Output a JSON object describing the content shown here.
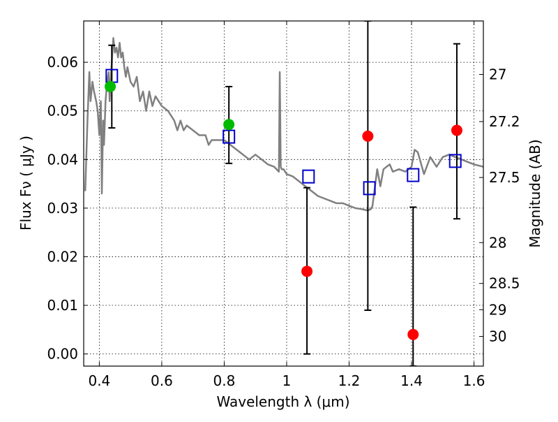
{
  "chart_data": {
    "type": "scatter",
    "xlabel": "Wavelength  λ (μm)",
    "ylabel": "Flux  Fν ( μJy )",
    "ylabel_right": "Magnitude (AB)",
    "xlim": [
      0.35,
      1.63
    ],
    "ylim": [
      -0.0025,
      0.0685
    ],
    "grid": true,
    "x_ticks": [
      0.4,
      0.6,
      0.8,
      1.0,
      1.2,
      1.4,
      1.6
    ],
    "x_tick_labels": [
      "0.4",
      "0.6",
      "0.8",
      "1",
      "1.2",
      "1.4",
      "1.6"
    ],
    "y_ticks": [
      0.0,
      0.01,
      0.02,
      0.03,
      0.04,
      0.05,
      0.06
    ],
    "y_tick_labels": [
      "0.00",
      "0.01",
      "0.02",
      "0.03",
      "0.04",
      "0.05",
      "0.06"
    ],
    "right_ticks": [
      {
        "label": "27",
        "flux": 0.0575
      },
      {
        "label": "27.2",
        "flux": 0.0478
      },
      {
        "label": "27.5",
        "flux": 0.0363
      },
      {
        "label": "28",
        "flux": 0.0229
      },
      {
        "label": "28.5",
        "flux": 0.0145
      },
      {
        "label": "29",
        "flux": 0.0091
      },
      {
        "label": "30",
        "flux": 0.0036
      }
    ],
    "series": [
      {
        "kind": "line",
        "color": "#808080",
        "x": [
          0.355,
          0.362,
          0.368,
          0.372,
          0.378,
          0.383,
          0.39,
          0.395,
          0.4,
          0.405,
          0.408,
          0.412,
          0.415,
          0.42,
          0.425,
          0.43,
          0.433,
          0.436,
          0.44,
          0.445,
          0.45,
          0.455,
          0.46,
          0.465,
          0.47,
          0.475,
          0.48,
          0.485,
          0.49,
          0.5,
          0.51,
          0.52,
          0.53,
          0.54,
          0.55,
          0.56,
          0.57,
          0.58,
          0.6,
          0.62,
          0.64,
          0.65,
          0.66,
          0.67,
          0.68,
          0.7,
          0.72,
          0.74,
          0.75,
          0.76,
          0.78,
          0.8,
          0.82,
          0.84,
          0.86,
          0.88,
          0.9,
          0.92,
          0.94,
          0.96,
          0.975,
          0.978,
          0.981,
          0.984,
          0.99,
          1.0,
          1.02,
          1.04,
          1.06,
          1.08,
          1.1,
          1.12,
          1.14,
          1.16,
          1.18,
          1.2,
          1.22,
          1.24,
          1.26,
          1.27,
          1.275,
          1.28,
          1.29,
          1.3,
          1.31,
          1.32,
          1.33,
          1.34,
          1.36,
          1.38,
          1.4,
          1.41,
          1.42,
          1.44,
          1.46,
          1.48,
          1.5,
          1.52,
          1.54,
          1.56,
          1.58,
          1.6,
          1.63
        ],
        "y": [
          0.0335,
          0.048,
          0.058,
          0.052,
          0.056,
          0.054,
          0.052,
          0.05,
          0.045,
          0.052,
          0.033,
          0.048,
          0.043,
          0.052,
          0.056,
          0.058,
          0.052,
          0.056,
          0.06,
          0.065,
          0.062,
          0.063,
          0.061,
          0.064,
          0.061,
          0.062,
          0.059,
          0.057,
          0.059,
          0.056,
          0.055,
          0.057,
          0.052,
          0.054,
          0.05,
          0.054,
          0.051,
          0.053,
          0.051,
          0.05,
          0.048,
          0.046,
          0.048,
          0.046,
          0.047,
          0.046,
          0.045,
          0.045,
          0.043,
          0.044,
          0.044,
          0.044,
          0.043,
          0.042,
          0.041,
          0.04,
          0.041,
          0.04,
          0.039,
          0.0385,
          0.0375,
          0.058,
          0.0385,
          0.038,
          0.038,
          0.037,
          0.0365,
          0.0355,
          0.0345,
          0.0335,
          0.0325,
          0.032,
          0.0315,
          0.031,
          0.031,
          0.0305,
          0.03,
          0.0298,
          0.0295,
          0.0298,
          0.0305,
          0.033,
          0.038,
          0.0345,
          0.038,
          0.0385,
          0.039,
          0.0375,
          0.038,
          0.0375,
          0.0385,
          0.042,
          0.0415,
          0.037,
          0.0405,
          0.0385,
          0.0405,
          0.041,
          0.0405,
          0.04,
          0.0395,
          0.039,
          0.0385
        ]
      },
      {
        "kind": "marker-square",
        "color": "#0000cc",
        "x": [
          0.44,
          0.815,
          1.07,
          1.265,
          1.405,
          1.54
        ],
        "y": [
          0.0572,
          0.0447,
          0.0365,
          0.0341,
          0.0368,
          0.0397
        ]
      },
      {
        "kind": "marker-circle",
        "color": "#00bb00",
        "x": [
          0.435,
          0.815
        ],
        "y": [
          0.055,
          0.0472
        ]
      },
      {
        "kind": "marker-circle",
        "color": "#ff0000",
        "x": [
          1.065,
          1.26,
          1.405,
          1.545
        ],
        "y": [
          0.017,
          0.0448,
          0.004,
          0.046
        ]
      }
    ],
    "error_bars": [
      {
        "x": 0.44,
        "low": 0.0465,
        "high": 0.0635
      },
      {
        "x": 0.815,
        "low": 0.0392,
        "high": 0.055
      },
      {
        "x": 1.065,
        "low": 0.0,
        "high": 0.0342
      },
      {
        "x": 1.26,
        "low": 0.009,
        "high": 0.0685
      },
      {
        "x": 1.405,
        "low": -0.0025,
        "high": 0.0302
      },
      {
        "x": 1.545,
        "low": 0.0278,
        "high": 0.0638
      }
    ]
  }
}
